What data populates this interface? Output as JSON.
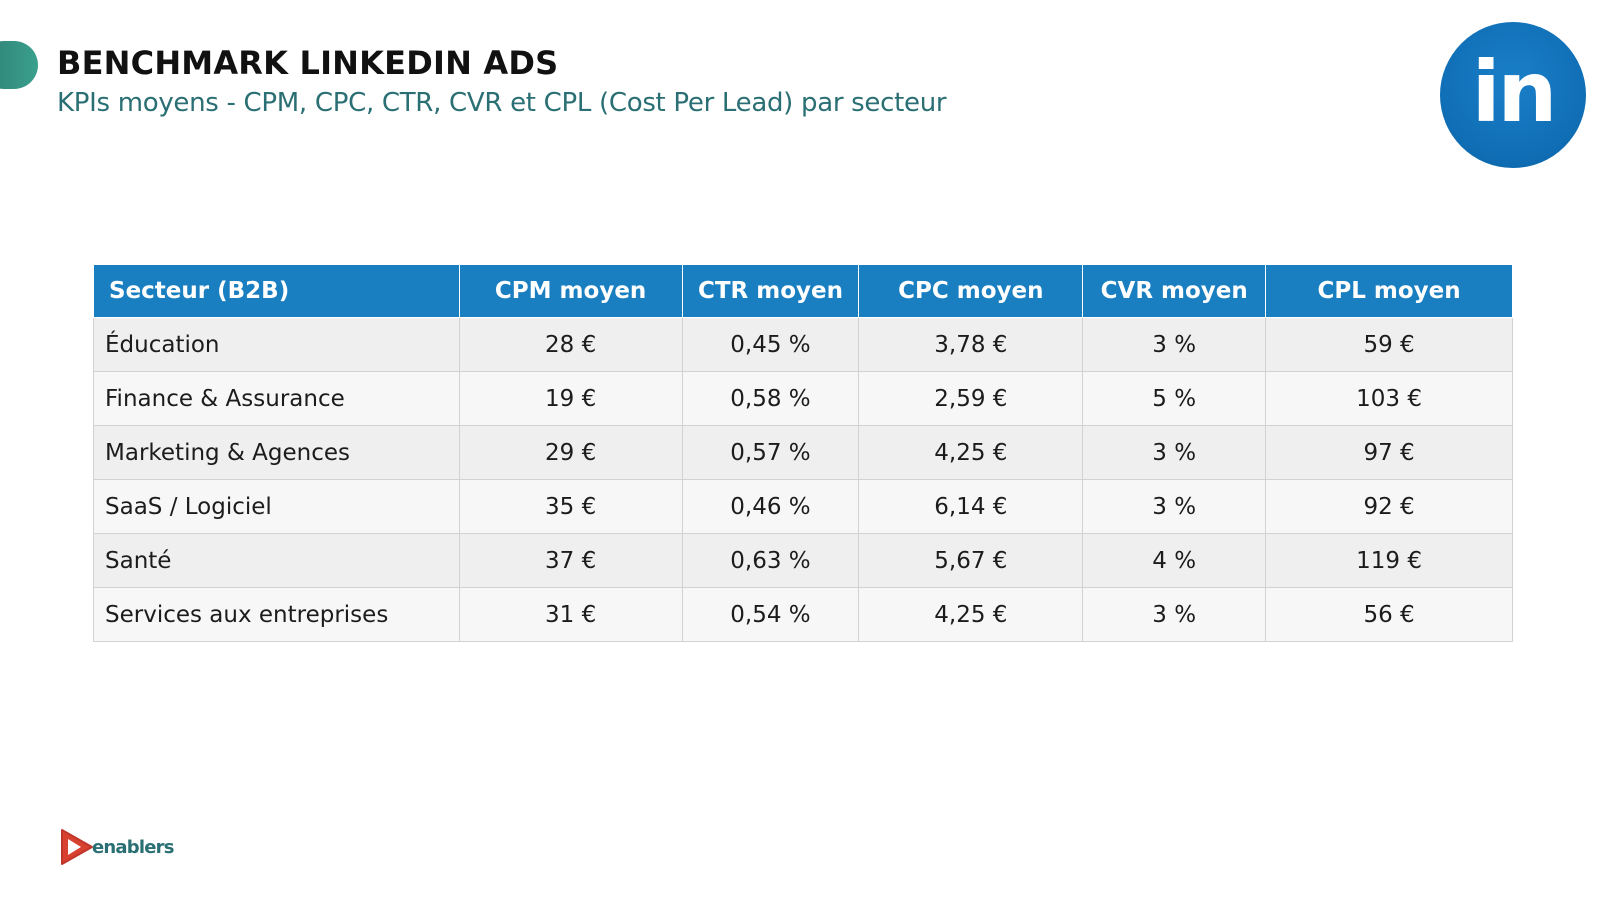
{
  "header": {
    "title": "BENCHMARK LINKEDIN ADS",
    "subtitle": "KPIs moyens - CPM, CPC, CTR, CVR et CPL (Cost Per Lead) par secteur",
    "logo_text": "in"
  },
  "table": {
    "columns": [
      "Secteur (B2B)",
      "CPM moyen",
      "CTR moyen",
      "CPC moyen",
      "CVR moyen",
      "CPL moyen"
    ],
    "rows": [
      [
        "Éducation",
        "28 €",
        "0,45 %",
        "3,78 €",
        "3 %",
        "59 €"
      ],
      [
        "Finance & Assurance",
        "19 €",
        "0,58 %",
        "2,59 €",
        "5 %",
        "103 €"
      ],
      [
        "Marketing & Agences",
        "29 €",
        "0,57 %",
        "4,25 €",
        "3 %",
        "97 €"
      ],
      [
        "SaaS / Logiciel",
        "35 €",
        "0,46 %",
        "6,14 €",
        "3 %",
        "92 €"
      ],
      [
        "Santé",
        "37 €",
        "0,63 %",
        "5,67 €",
        "4 %",
        "119 €"
      ],
      [
        "Services aux entreprises",
        "31 €",
        "0,54 %",
        "4,25 €",
        "3 %",
        "56 €"
      ]
    ]
  },
  "footer": {
    "brand": "enablers"
  },
  "colors": {
    "header_blue": "#1a7fc1",
    "subtitle_teal": "#2a6f73",
    "linkedin_blue": "#0f6db4",
    "brand_red": "#d8402f"
  }
}
